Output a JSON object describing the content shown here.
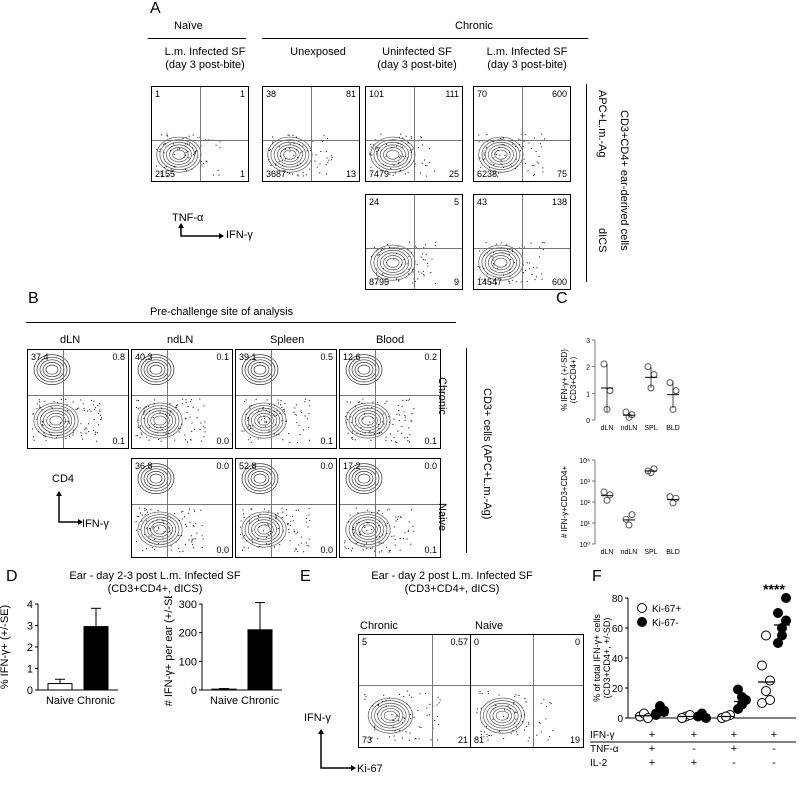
{
  "panelA": {
    "letter": "A",
    "group_naive": "Naïve",
    "group_chronic": "Chronic",
    "col1": "L.m. Infected SF\n(day 3 post-bite)",
    "col2": "Unexposed",
    "col3": "Uninfected SF\n(day 3 post-bite)",
    "col4": "L.m. Infected SF\n(day 3 post-bite)",
    "row1_label": "APC+L.m.-Ag",
    "row2_label": "dICS",
    "side_label": "CD3+CD4+ ear-derived cells",
    "yaxis": "TNF-α",
    "xaxis": "IFN-γ",
    "plots": [
      {
        "tl": "1",
        "tr": "1",
        "bl": "2155",
        "br": "1"
      },
      {
        "tl": "38",
        "tr": "81",
        "bl": "3687",
        "br": "13"
      },
      {
        "tl": "101",
        "tr": "111",
        "bl": "7479",
        "br": "25"
      },
      {
        "tl": "70",
        "tr": "600",
        "bl": "6238",
        "br": "75"
      },
      {
        "tl": "24",
        "tr": "5",
        "bl": "8795",
        "br": "9"
      },
      {
        "tl": "43",
        "tr": "138",
        "bl": "14547",
        "br": "600"
      }
    ]
  },
  "panelB": {
    "letter": "B",
    "header": "Pre-challenge site of analysis",
    "cols": [
      "dLN",
      "ndLN",
      "Spleen",
      "Blood"
    ],
    "row1_label": "Chronic",
    "row2_label": "Naive",
    "side_label": "CD3+ cells (APC+L.m.-Ag)",
    "yaxis": "CD4",
    "xaxis": "IFN-γ",
    "plots": [
      {
        "tl": "37.4",
        "tr": "0.8",
        "bl": "",
        "br": "0.1"
      },
      {
        "tl": "40.3",
        "tr": "0.1",
        "bl": "",
        "br": "0.0"
      },
      {
        "tl": "39.1",
        "tr": "0.5",
        "bl": "",
        "br": "0.1"
      },
      {
        "tl": "12.6",
        "tr": "0.2",
        "bl": "",
        "br": "0.1"
      },
      {
        "tl": "36.8",
        "tr": "0.0",
        "bl": "",
        "br": "0.0"
      },
      {
        "tl": "52.8",
        "tr": "0.0",
        "bl": "",
        "br": "0.0"
      },
      {
        "tl": "17.2",
        "tr": "0.0",
        "bl": "",
        "br": "0.1"
      }
    ]
  },
  "panelC": {
    "letter": "C",
    "top_ylabel": "% IFN-γ+ (+/-SD)\n(CD3+CD4+)",
    "bottom_ylabel": "# IFN-γ+CD3+CD4+",
    "top_ticks": [
      "0",
      "1",
      "2",
      "3"
    ],
    "bottom_ticks": [
      "10⁰",
      "10¹",
      "10²",
      "10³",
      "10⁴"
    ]
  },
  "panelD": {
    "letter": "D",
    "title": "Ear - day 2-3 post L.m. Infected SF\n(CD3+CD4+, dICS)",
    "left_ylabel": "% IFN-γ+ (+/-SE)",
    "right_ylabel": "# IFN-γ+ per ear (+/-SE)",
    "left_ticks": [
      "0",
      "1",
      "2",
      "3",
      "4"
    ],
    "right_ticks": [
      "0",
      "100",
      "200",
      "300"
    ]
  },
  "panelE": {
    "letter": "E",
    "title": "Ear - day 2 post L.m. Infected SF\n(CD3+CD4+, dICS)",
    "cols": [
      "Chronic",
      "Naive"
    ],
    "yaxis": "IFN-γ",
    "xaxis": "Ki-67",
    "plots": [
      {
        "tl": "5",
        "tr": "0.57",
        "bl": "73",
        "br": "21"
      },
      {
        "tl": "0",
        "tr": "0",
        "bl": "81",
        "br": "19"
      }
    ]
  },
  "panelF": {
    "letter": "F",
    "ylabel": "% of total IFN-γ+ cells\n(CD3+CD4+, +/-SD)",
    "ticks": [
      "0",
      "20",
      "40",
      "60",
      "80"
    ],
    "legend": [
      "Ki-67+",
      "Ki-67-"
    ],
    "significance": "****",
    "row_labels": [
      "IFN-γ",
      "TNF-α",
      "IL-2"
    ],
    "row_signs": [
      [
        "+",
        "+",
        "+",
        "+"
      ],
      [
        "+",
        "-",
        "+",
        "-"
      ],
      [
        "+",
        "+",
        "-",
        "-"
      ]
    ]
  },
  "chart_data": [
    {
      "type": "scatter",
      "title": "",
      "ylabel": "% IFN-γ+ (+/-SD) (CD3+CD4+)",
      "categories": [
        "dLN",
        "ndLN",
        "SPL",
        "BLD"
      ],
      "ylim": [
        0,
        3
      ],
      "points": [
        [
          2.1,
          0.4,
          1.1
        ],
        [
          0.3,
          0.1,
          0.2
        ],
        [
          2.0,
          1.2,
          1.7
        ],
        [
          1.4,
          0.4,
          1.1
        ]
      ],
      "means": [
        1.2,
        0.18,
        1.6,
        0.95
      ],
      "sd": [
        0.9,
        0.1,
        0.4,
        0.5
      ]
    },
    {
      "type": "scatter",
      "title": "",
      "ylabel": "# IFN-γ+CD3+CD4+",
      "categories": [
        "dLN",
        "ndLN",
        "SPL",
        "BLD"
      ],
      "scale": "log",
      "ylim": [
        1,
        10000
      ],
      "points": [
        [
          300,
          120,
          220
        ],
        [
          15,
          8,
          25
        ],
        [
          3000,
          2500,
          3800
        ],
        [
          180,
          90,
          150
        ]
      ],
      "means": [
        200,
        14,
        3000,
        130
      ]
    },
    {
      "type": "bar",
      "ylabel": "% IFN-γ+ (+/-SE)",
      "categories": [
        "Naive",
        "Chronic"
      ],
      "values": [
        0.3,
        2.95
      ],
      "errors": [
        0.2,
        0.85
      ],
      "ylim": [
        0,
        4
      ]
    },
    {
      "type": "bar",
      "ylabel": "# IFN-γ+ per ear (+/-SE)",
      "categories": [
        "Naive",
        "Chronic"
      ],
      "values": [
        3,
        210
      ],
      "errors": [
        2,
        95
      ],
      "ylim": [
        0,
        300
      ]
    },
    {
      "type": "scatter",
      "ylabel": "% of total IFN-γ+ cells (CD3+CD4+, +/-SD)",
      "categories": [
        "IFN-γ+ TNF-α+ IL-2+",
        "IFN-γ+ TNF-α- IL-2+",
        "IFN-γ+ TNF-α+ IL-2-",
        "IFN-γ+ TNF-α- IL-2-"
      ],
      "ylim": [
        0,
        80
      ],
      "series": [
        {
          "name": "Ki-67+",
          "points": [
            [
              1,
              2,
              0,
              1,
              3,
              0
            ],
            [
              0,
              1,
              2,
              0
            ],
            [
              0,
              1,
              2,
              0,
              1
            ],
            [
              10,
              18,
              25,
              35,
              55,
              12
            ]
          ],
          "means": [
            1.5,
            1,
            1,
            24
          ]
        },
        {
          "name": "Ki-67-",
          "points": [
            [
              2,
              6,
              4,
              3,
              8,
              5
            ],
            [
              1,
              3,
              0
            ],
            [
              6,
              14,
              12,
              19,
              9
            ],
            [
              50,
              60,
              65,
              70,
              55,
              80
            ]
          ],
          "means": [
            5,
            2,
            11,
            62
          ]
        }
      ]
    }
  ]
}
